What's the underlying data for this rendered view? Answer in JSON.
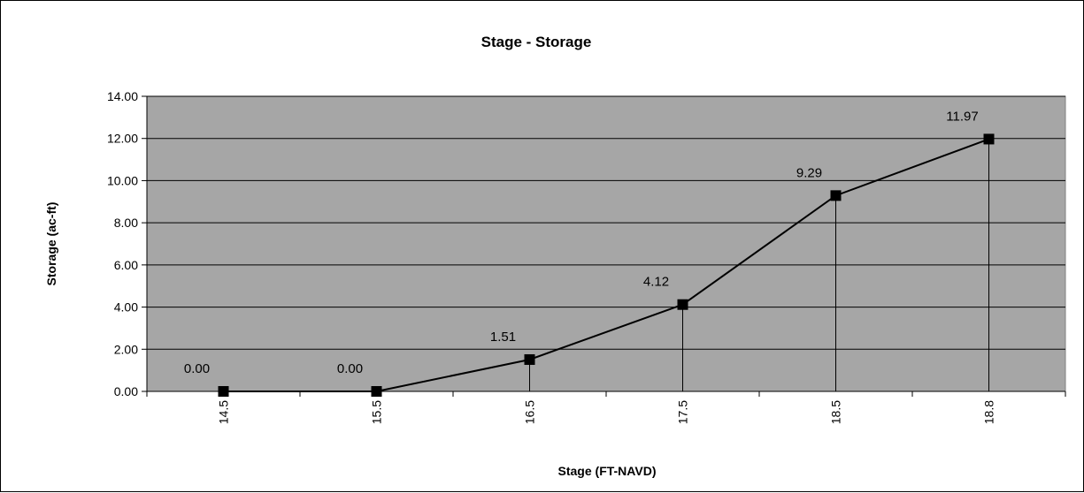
{
  "chart_data": {
    "type": "line",
    "title": "Stage - Storage",
    "xlabel": "Stage (FT-NAVD)",
    "ylabel": "Storage (ac-ft)",
    "categories": [
      "14.5",
      "15.5",
      "16.5",
      "17.5",
      "18.5",
      "18.8"
    ],
    "values": [
      0.0,
      0.0,
      1.51,
      4.12,
      9.29,
      11.97
    ],
    "data_labels": [
      "0.00",
      "0.00",
      "1.51",
      "4.12",
      "9.29",
      "11.97"
    ],
    "y_ticks": [
      "0.00",
      "2.00",
      "4.00",
      "6.00",
      "8.00",
      "10.00",
      "12.00",
      "14.00"
    ],
    "ylim": [
      0,
      14
    ],
    "grid": true,
    "drop_lines": true,
    "plot_background": "#a6a6a6",
    "line_color": "#000000",
    "marker": "square"
  }
}
